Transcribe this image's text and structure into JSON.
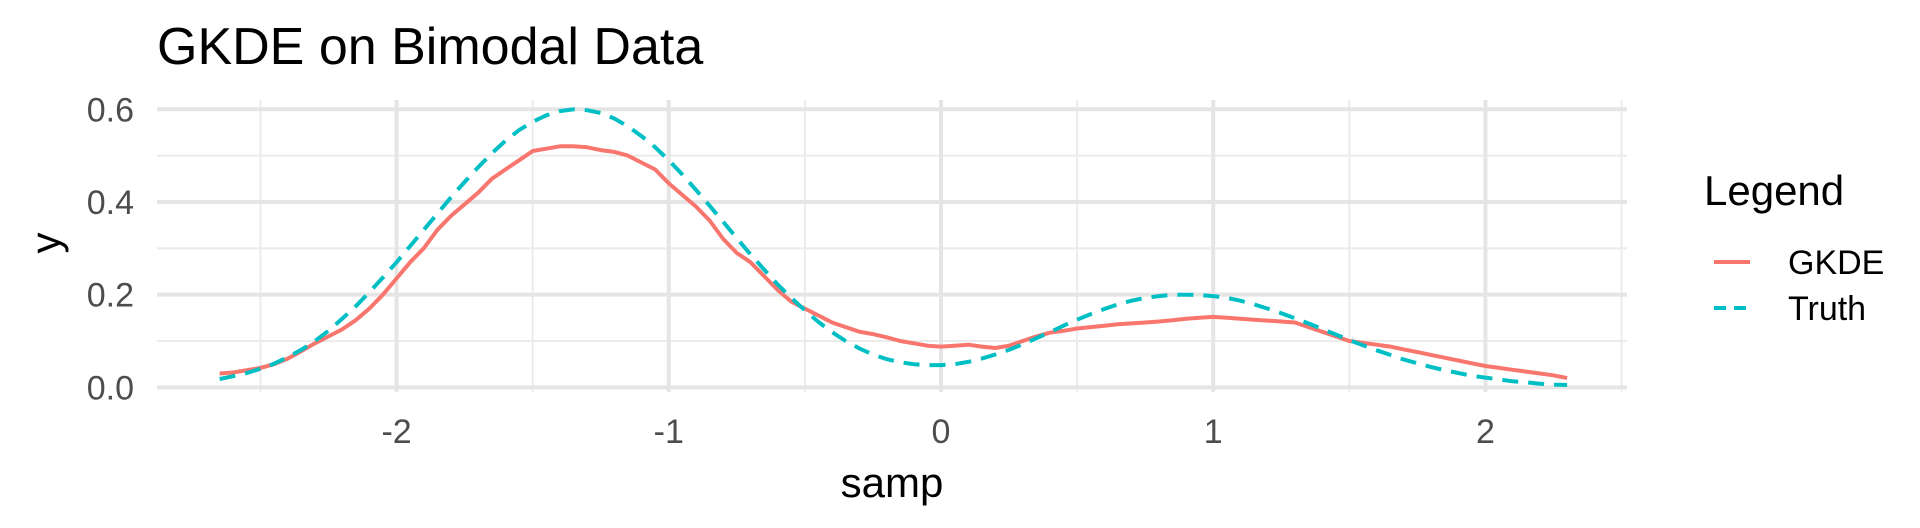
{
  "chart_data": {
    "type": "line",
    "title": "GKDE on Bimodal Data",
    "xlabel": "samp",
    "ylabel": "y",
    "xlim": [
      -2.88,
      2.52
    ],
    "ylim": [
      -0.01,
      0.62
    ],
    "x_ticks": [
      -2,
      -1,
      0,
      1,
      2
    ],
    "x_tick_labels": [
      "-2",
      "-1",
      "0",
      "1",
      "2"
    ],
    "x_minor_ticks": [
      -2.5,
      -1.5,
      -0.5,
      0.5,
      1.5,
      2.5
    ],
    "y_ticks": [
      0.0,
      0.2,
      0.4,
      0.6
    ],
    "y_tick_labels": [
      "0.0",
      "0.2",
      "0.4",
      "0.6"
    ],
    "y_minor_ticks": [
      0.1,
      0.3,
      0.5
    ],
    "grid": true,
    "legend": {
      "title": "Legend",
      "position": "right"
    },
    "series": [
      {
        "name": "GKDE",
        "color": "#F8766D",
        "dash": "solid",
        "x": [
          -2.65,
          -2.6,
          -2.55,
          -2.5,
          -2.45,
          -2.4,
          -2.35,
          -2.3,
          -2.25,
          -2.2,
          -2.15,
          -2.1,
          -2.05,
          -2.0,
          -1.95,
          -1.9,
          -1.85,
          -1.8,
          -1.75,
          -1.7,
          -1.65,
          -1.6,
          -1.55,
          -1.5,
          -1.45,
          -1.4,
          -1.35,
          -1.3,
          -1.25,
          -1.2,
          -1.15,
          -1.1,
          -1.05,
          -1.0,
          -0.95,
          -0.9,
          -0.85,
          -0.8,
          -0.75,
          -0.7,
          -0.65,
          -0.6,
          -0.55,
          -0.5,
          -0.45,
          -0.4,
          -0.35,
          -0.3,
          -0.25,
          -0.2,
          -0.15,
          -0.1,
          -0.05,
          0.0,
          0.05,
          0.1,
          0.15,
          0.2,
          0.25,
          0.3,
          0.35,
          0.4,
          0.45,
          0.5,
          0.55,
          0.6,
          0.65,
          0.7,
          0.75,
          0.8,
          0.85,
          0.9,
          0.95,
          1.0,
          1.05,
          1.1,
          1.15,
          1.2,
          1.25,
          1.3,
          1.35,
          1.4,
          1.45,
          1.5,
          1.55,
          1.6,
          1.65,
          1.7,
          1.75,
          1.8,
          1.85,
          1.9,
          1.95,
          2.0,
          2.05,
          2.1,
          2.15,
          2.2,
          2.25,
          2.3
        ],
        "y": [
          0.03,
          0.032,
          0.037,
          0.042,
          0.05,
          0.062,
          0.078,
          0.095,
          0.11,
          0.125,
          0.145,
          0.17,
          0.2,
          0.235,
          0.27,
          0.3,
          0.34,
          0.37,
          0.395,
          0.42,
          0.45,
          0.47,
          0.49,
          0.51,
          0.515,
          0.52,
          0.52,
          0.518,
          0.512,
          0.508,
          0.5,
          0.485,
          0.47,
          0.44,
          0.415,
          0.39,
          0.36,
          0.32,
          0.29,
          0.27,
          0.24,
          0.21,
          0.185,
          0.17,
          0.155,
          0.14,
          0.13,
          0.12,
          0.115,
          0.108,
          0.1,
          0.095,
          0.09,
          0.088,
          0.09,
          0.092,
          0.088,
          0.085,
          0.09,
          0.1,
          0.11,
          0.118,
          0.122,
          0.127,
          0.13,
          0.133,
          0.136,
          0.138,
          0.14,
          0.142,
          0.145,
          0.148,
          0.15,
          0.152,
          0.15,
          0.148,
          0.146,
          0.144,
          0.142,
          0.14,
          0.13,
          0.12,
          0.11,
          0.1,
          0.096,
          0.092,
          0.088,
          0.082,
          0.076,
          0.07,
          0.064,
          0.058,
          0.052,
          0.046,
          0.042,
          0.038,
          0.034,
          0.03,
          0.026,
          0.02
        ]
      },
      {
        "name": "Truth",
        "color": "#00BFC4",
        "dash": "dashed",
        "x": [
          -2.65,
          -2.6,
          -2.55,
          -2.5,
          -2.45,
          -2.4,
          -2.35,
          -2.3,
          -2.25,
          -2.2,
          -2.15,
          -2.1,
          -2.05,
          -2.0,
          -1.95,
          -1.9,
          -1.85,
          -1.8,
          -1.75,
          -1.7,
          -1.65,
          -1.6,
          -1.55,
          -1.5,
          -1.45,
          -1.4,
          -1.35,
          -1.3,
          -1.25,
          -1.2,
          -1.15,
          -1.1,
          -1.05,
          -1.0,
          -0.95,
          -0.9,
          -0.85,
          -0.8,
          -0.75,
          -0.7,
          -0.65,
          -0.6,
          -0.55,
          -0.5,
          -0.45,
          -0.4,
          -0.35,
          -0.3,
          -0.25,
          -0.2,
          -0.15,
          -0.1,
          -0.05,
          0.0,
          0.05,
          0.1,
          0.15,
          0.2,
          0.25,
          0.3,
          0.35,
          0.4,
          0.45,
          0.5,
          0.55,
          0.6,
          0.65,
          0.7,
          0.75,
          0.8,
          0.85,
          0.9,
          0.95,
          1.0,
          1.05,
          1.1,
          1.15,
          1.2,
          1.25,
          1.3,
          1.35,
          1.4,
          1.45,
          1.5,
          1.55,
          1.6,
          1.65,
          1.7,
          1.75,
          1.8,
          1.85,
          1.9,
          1.95,
          2.0,
          2.05,
          2.1,
          2.15,
          2.2,
          2.25,
          2.3
        ],
        "y": [
          0.018,
          0.024,
          0.031,
          0.04,
          0.051,
          0.065,
          0.081,
          0.1,
          0.122,
          0.148,
          0.175,
          0.205,
          0.237,
          0.27,
          0.305,
          0.34,
          0.375,
          0.41,
          0.443,
          0.475,
          0.505,
          0.532,
          0.555,
          0.573,
          0.587,
          0.596,
          0.6,
          0.598,
          0.592,
          0.58,
          0.563,
          0.542,
          0.518,
          0.49,
          0.459,
          0.426,
          0.392,
          0.357,
          0.322,
          0.287,
          0.254,
          0.222,
          0.193,
          0.166,
          0.141,
          0.119,
          0.1,
          0.084,
          0.071,
          0.061,
          0.054,
          0.05,
          0.048,
          0.048,
          0.05,
          0.055,
          0.062,
          0.071,
          0.081,
          0.093,
          0.106,
          0.119,
          0.133,
          0.146,
          0.158,
          0.169,
          0.179,
          0.187,
          0.193,
          0.197,
          0.2,
          0.2,
          0.199,
          0.197,
          0.193,
          0.187,
          0.179,
          0.17,
          0.16,
          0.149,
          0.138,
          0.126,
          0.114,
          0.102,
          0.091,
          0.08,
          0.07,
          0.06,
          0.052,
          0.044,
          0.037,
          0.031,
          0.025,
          0.021,
          0.017,
          0.013,
          0.011,
          0.008,
          0.006,
          0.005
        ]
      }
    ]
  }
}
